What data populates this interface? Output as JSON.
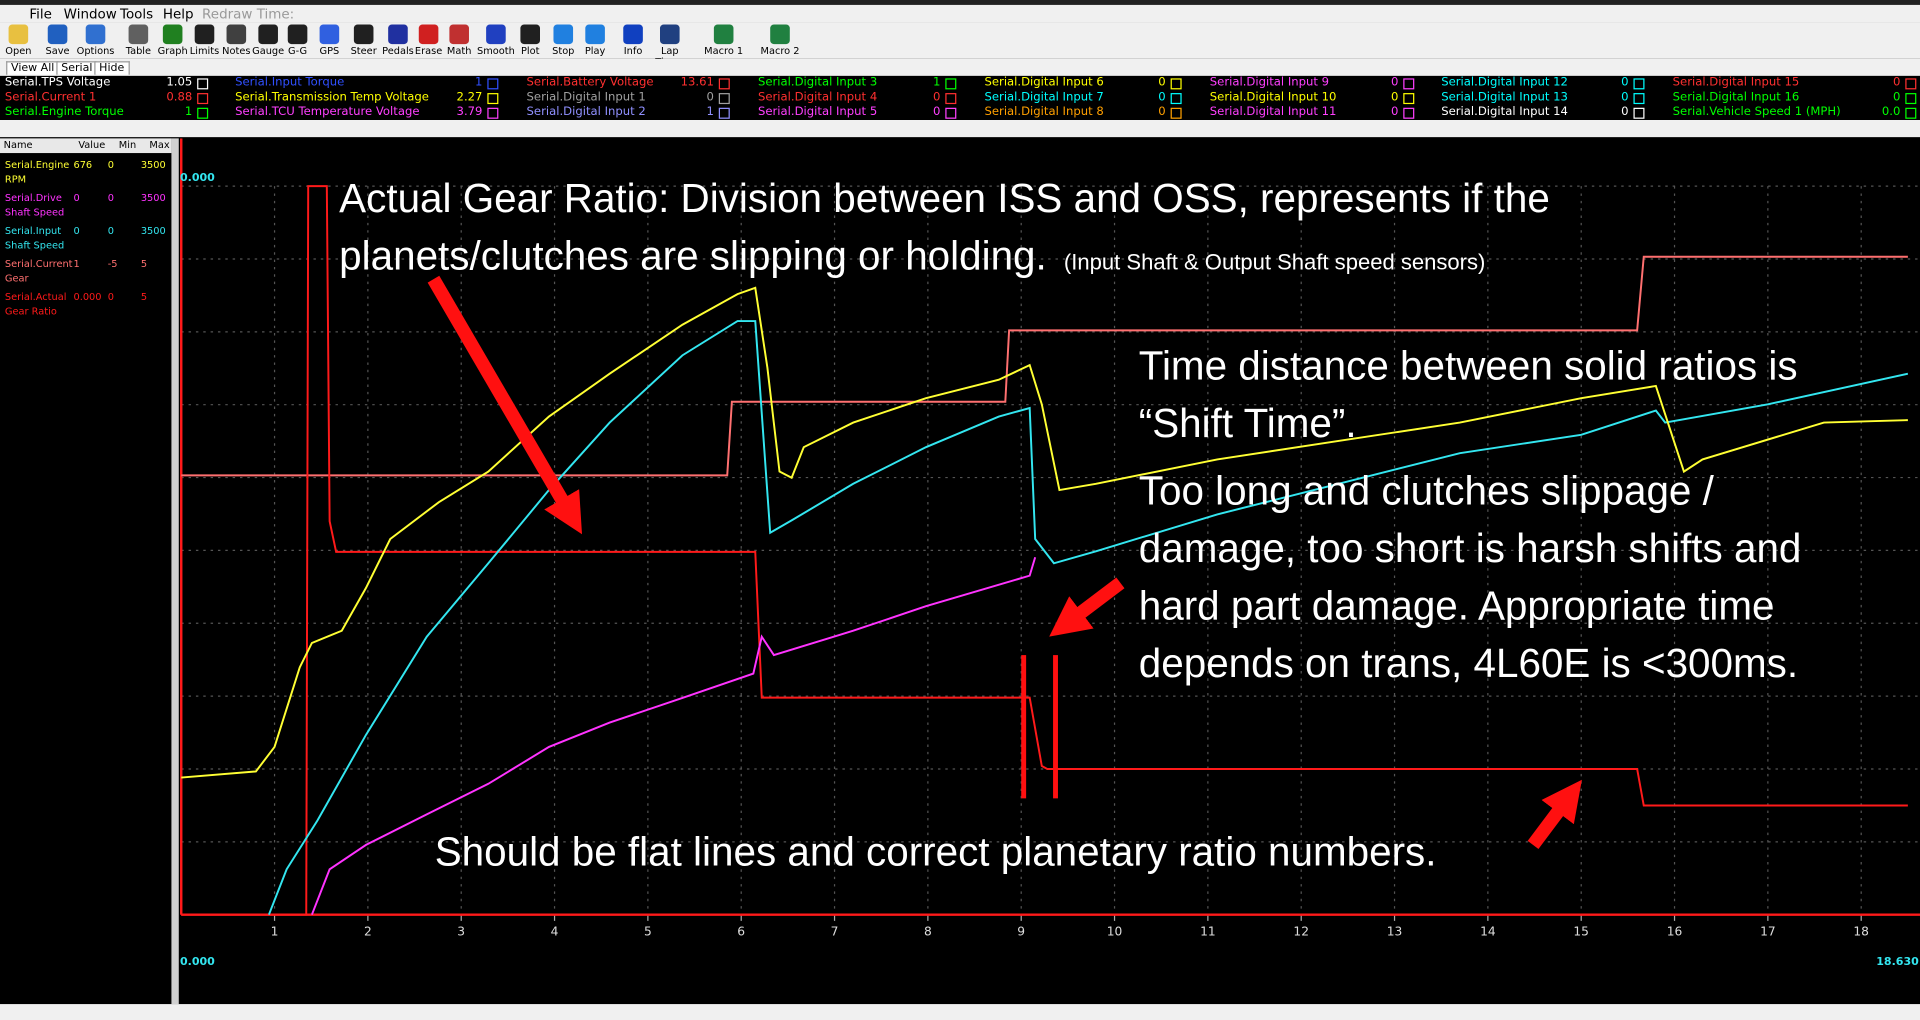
{
  "menu": [
    "File",
    "Window",
    "Tools",
    "Help"
  ],
  "redraw_label": "Redraw Time:",
  "toolbar": [
    "Open",
    "Save",
    "Options",
    "Table",
    "Graph",
    "Limits",
    "Notes",
    "Gauge",
    "G-G",
    "GPS",
    "Steer",
    "Pedals",
    "Erase",
    "Math",
    "Smooth",
    "Plot",
    "Stop",
    "Play",
    "Info",
    "Lap Times",
    "Macro 1",
    "Macro 2"
  ],
  "tabs": [
    "View All",
    "Serial",
    "Hide"
  ],
  "channels": [
    {
      "name": "Serial.TPS Voltage",
      "value": "1.05",
      "color": "#ffffff"
    },
    {
      "name": "Serial.Current 1",
      "value": "0.88",
      "color": "#ff3030"
    },
    {
      "name": "Serial.Engine Torque",
      "value": "1",
      "color": "#00ff00"
    },
    {
      "name": "Serial.Input Torque",
      "value": "1",
      "color": "#3050ff"
    },
    {
      "name": "Serial.Transmission Temp Voltage",
      "value": "2.27",
      "color": "#ffff00"
    },
    {
      "name": "Serial.TCU Temperature Voltage",
      "value": "3.79",
      "color": "#ff40ff"
    },
    {
      "name": "Serial.Battery Voltage",
      "value": "13.61",
      "color": "#ff3030"
    },
    {
      "name": "Serial.Digital Input 1",
      "value": "0",
      "color": "#a0a0a0"
    },
    {
      "name": "Serial.Digital Input 2",
      "value": "1",
      "color": "#9090ff"
    },
    {
      "name": "Serial.Digital Input 3",
      "value": "1",
      "color": "#00ff00"
    },
    {
      "name": "Serial.Digital Input 4",
      "value": "0",
      "color": "#ff3030"
    },
    {
      "name": "Serial.Digital Input 5",
      "value": "0",
      "color": "#ff40ff"
    },
    {
      "name": "Serial.Digital Input 6",
      "value": "0",
      "color": "#ffff00"
    },
    {
      "name": "Serial.Digital Input 7",
      "value": "0",
      "color": "#00ffff"
    },
    {
      "name": "Serial.Digital Input 8",
      "value": "0",
      "color": "#ffa000"
    },
    {
      "name": "Serial.Digital Input 9",
      "value": "0",
      "color": "#ff40ff"
    },
    {
      "name": "Serial.Digital Input 10",
      "value": "0",
      "color": "#ffff00"
    },
    {
      "name": "Serial.Digital Input 11",
      "value": "0",
      "color": "#ff40ff"
    },
    {
      "name": "Serial.Digital Input 12",
      "value": "0",
      "color": "#00ffff"
    },
    {
      "name": "Serial.Digital Input 13",
      "value": "0",
      "color": "#00ffff"
    },
    {
      "name": "Serial.Digital Input 14",
      "value": "0",
      "color": "#ffffff"
    },
    {
      "name": "Serial.Digital Input 15",
      "value": "0",
      "color": "#ff3030"
    },
    {
      "name": "Serial.Digital Input 16",
      "value": "0",
      "color": "#00ff00"
    },
    {
      "name": "Serial.Vehicle Speed 1 (MPH)",
      "value": "0.0",
      "color": "#00ff00"
    }
  ],
  "legend_header": [
    "Name",
    "Value",
    "Min",
    "Max"
  ],
  "chart_data": {
    "type": "line",
    "xlim": [
      0,
      18.63
    ],
    "xticks": [
      1,
      2,
      3,
      4,
      5,
      6,
      7,
      8,
      9,
      10,
      11,
      12,
      13,
      14,
      15,
      16,
      17,
      18
    ],
    "x_start_label": "0.000",
    "x_end_label": "18.630",
    "y_top_label": "0.000",
    "series": [
      {
        "name": "Serial.Engine RPM",
        "color": "#ffff33",
        "current_value": "676",
        "ylim": [
          0,
          3500
        ],
        "x": [
          0,
          0.8,
          1.0,
          1.27,
          1.4,
          1.72,
          1.98,
          2.24,
          2.76,
          3.29,
          3.94,
          4.59,
          5.37,
          5.96,
          6.15,
          6.28,
          6.41,
          6.54,
          6.67,
          7.2,
          7.98,
          8.76,
          9.09,
          9.22,
          9.41,
          9.8,
          11.1,
          12.4,
          13.7,
          15.0,
          15.8,
          16.1,
          16.3,
          17.6,
          18.5
        ],
        "values": [
          659,
          688,
          806,
          1188,
          1305,
          1364,
          1570,
          1805,
          1982,
          2129,
          2393,
          2599,
          2834,
          2981,
          3011,
          2628,
          2129,
          2099,
          2246,
          2364,
          2481,
          2570,
          2640,
          2452,
          2040,
          2070,
          2187,
          2276,
          2364,
          2481,
          2540,
          2129,
          2187,
          2364,
          2376
        ]
      },
      {
        "name": "Serial.Drive Shaft Speed",
        "color": "#ff33ff",
        "current_value": "0",
        "ylim": [
          0,
          3500
        ],
        "x": [
          1.4,
          1.59,
          1.98,
          2.63,
          3.29,
          3.94,
          4.59,
          5.37,
          6.13,
          6.22,
          6.35,
          7.2,
          7.98,
          9.09,
          9.15
        ],
        "values": [
          0,
          218,
          335,
          482,
          629,
          806,
          923,
          1041,
          1158,
          1335,
          1247,
          1364,
          1482,
          1629,
          1717
        ]
      },
      {
        "name": "Serial.Input Shaft Speed",
        "color": "#33e6f0",
        "current_value": "0",
        "ylim": [
          0,
          3500
        ],
        "x": [
          0.94,
          1.13,
          1.46,
          1.98,
          2.63,
          3.29,
          3.94,
          4.59,
          5.37,
          5.96,
          6.15,
          6.26,
          6.31,
          6.54,
          7.2,
          7.98,
          8.76,
          9.09,
          9.15,
          9.35,
          9.8,
          11.1,
          12.4,
          13.7,
          15.0,
          15.8,
          15.9,
          17.0,
          18.5
        ],
        "values": [
          0,
          218,
          453,
          864,
          1335,
          1688,
          2040,
          2364,
          2687,
          2852,
          2852,
          2158,
          1835,
          1894,
          2070,
          2246,
          2393,
          2434,
          1805,
          1688,
          1746,
          1923,
          2070,
          2217,
          2305,
          2422,
          2364,
          2452,
          2599
        ]
      },
      {
        "name": "Serial.Current Gear",
        "color": "#ff7070",
        "current_value": "1",
        "ylim": [
          -5,
          5
        ],
        "x": [
          0,
          5.85,
          5.9,
          8.83,
          8.87,
          15.6,
          15.67,
          18.5
        ],
        "values": [
          1.03,
          1.03,
          2.04,
          2.04,
          3.02,
          3.02,
          4.03,
          4.03
        ]
      },
      {
        "name": "Serial.Actual Gear Ratio",
        "color": "#ff1a1a",
        "current_value": "0.000",
        "ylim": [
          0,
          5
        ],
        "x": [
          0,
          1.34,
          1.36,
          1.56,
          1.59,
          1.66,
          6.15,
          6.22,
          9.09,
          9.22,
          9.28,
          15.6,
          15.67,
          18.5
        ],
        "values": [
          0,
          0,
          5,
          5,
          2.7,
          2.49,
          2.49,
          1.49,
          1.49,
          1.02,
          1.0,
          1.0,
          0.75,
          0.75
        ]
      }
    ]
  },
  "annotations": [
    {
      "lines": [
        "Actual Gear Ratio: Division between ISS and OSS, represents if the",
        "planets/clutches are slipping or holding."
      ],
      "note": "(Input Shaft & Output Shaft speed sensors)"
    },
    {
      "lines": [
        "Time distance between solid ratios is",
        "“Shift Time”."
      ]
    },
    {
      "lines": [
        "Too long and clutches slippage /",
        "damage, too short is harsh shifts and",
        "hard part damage.  Appropriate time",
        "depends on trans, 4L60E is <300ms."
      ]
    },
    {
      "lines": [
        "Should be flat lines and correct planetary ratio numbers."
      ]
    }
  ]
}
